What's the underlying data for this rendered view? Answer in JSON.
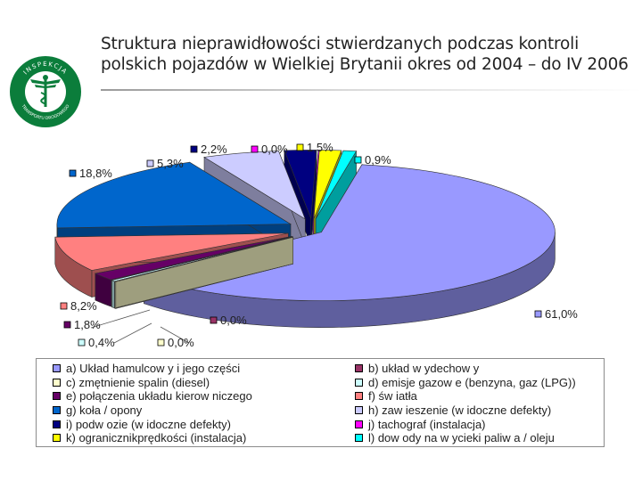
{
  "page": {
    "title": "Struktura nieprawidłowości stwierdzanych podczas kontroli polskich pojazdów w Wielkiej Brytanii okres od 2004 – do IV 2006"
  },
  "logo": {
    "text_top": "INSPEKCJA",
    "text_bottom": "TRANSPORTU DROGOWEGO"
  },
  "chart_data": {
    "type": "pie",
    "style": "3d-exploded",
    "title": "Struktura nieprawidłowości stwierdzanych podczas kontroli polskich pojazdów w Wielkiej Brytanii okres od 2004 – do IV 2006",
    "legend_placement": "bottom",
    "slices": [
      {
        "key": "a",
        "label": "a) Układ hamulcow y i jego części",
        "value": 61.0,
        "value_label": "61,0%",
        "color": "#9999ff"
      },
      {
        "key": "b",
        "label": "b) układ w ydechow y",
        "value": 0.0,
        "value_label": "0,0%",
        "color": "#993366"
      },
      {
        "key": "c",
        "label": "c) zmętnienie spalin (diesel)",
        "value": 0.0,
        "value_label": "0,0%",
        "color": "#ffffcc"
      },
      {
        "key": "d",
        "label": "d) emisje gazow e (benzyna, gaz (LPG))",
        "value": 0.4,
        "value_label": "0,4%",
        "color": "#ccffff"
      },
      {
        "key": "e",
        "label": "e) połączenia układu kierow niczego",
        "value": 1.8,
        "value_label": "1,8%",
        "color": "#660066"
      },
      {
        "key": "f",
        "label": "f) św iatła",
        "value": 8.2,
        "value_label": "8,2%",
        "color": "#ff8080"
      },
      {
        "key": "g",
        "label": "g) koła / opony",
        "value": 18.8,
        "value_label": "18,8%",
        "color": "#0066cc"
      },
      {
        "key": "h",
        "label": "h) zaw ieszenie (w idoczne defekty)",
        "value": 5.3,
        "value_label": "5,3%",
        "color": "#ccccff"
      },
      {
        "key": "i",
        "label": "i) podw ozie (w idoczne defekty)",
        "value": 2.2,
        "value_label": "2,2%",
        "color": "#000080"
      },
      {
        "key": "j",
        "label": "j) tachograf (instalacja)",
        "value": 0.0,
        "value_label": "0,0%",
        "color": "#ff00ff"
      },
      {
        "key": "k",
        "label": "k) ogranicznikprędkości (instalacja)",
        "value": 1.5,
        "value_label": "1,5%",
        "color": "#ffff00"
      },
      {
        "key": "l",
        "label": "l) dow ody na w ycieki paliw a / oleju",
        "value": 0.9,
        "value_label": "0,9%",
        "color": "#00ffff"
      }
    ]
  }
}
